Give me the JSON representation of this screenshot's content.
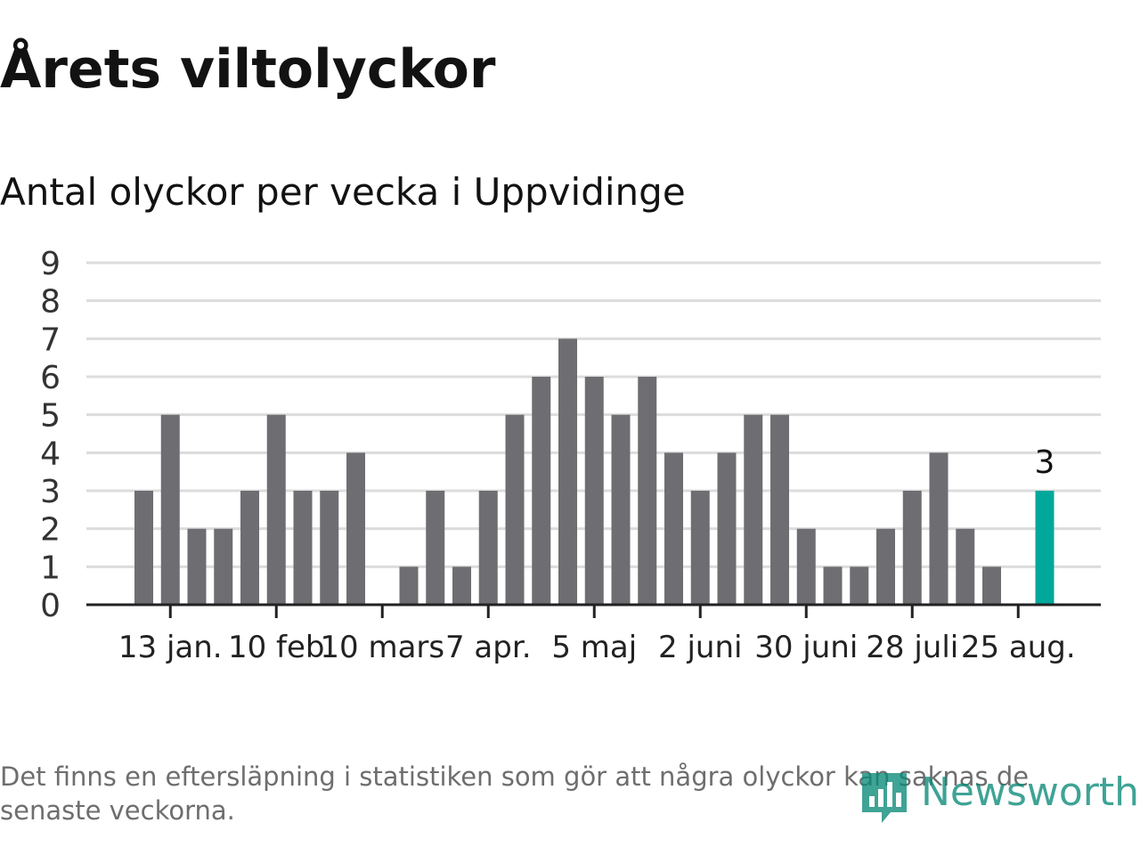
{
  "title": "Årets viltolyckor",
  "subtitle": "Antal olyckor per vecka i Uppvidinge",
  "footnote": "Det finns en eftersläpning i statistiken som gör att några olyckor kan saknas de senaste veckorna.",
  "logo": {
    "text": "Newsworthy",
    "icon": "newsworthy-bar-chart-logo-icon"
  },
  "colors": {
    "bar": "#6e6e72",
    "highlight": "#00a89b",
    "grid": "#dcdcdc",
    "axis": "#222222",
    "text": "#121212",
    "logo": "#0a8a78"
  },
  "chart_data": {
    "type": "bar",
    "title": "Årets viltolyckor",
    "subtitle": "Antal olyckor per vecka i Uppvidinge",
    "xlabel": "",
    "ylabel": "",
    "ylim": [
      0,
      9
    ],
    "yticks": [
      0,
      1,
      2,
      3,
      4,
      5,
      6,
      7,
      8,
      9
    ],
    "grid": true,
    "legend": "none",
    "x_tick_labels": [
      {
        "week": 2,
        "label": "13 jan."
      },
      {
        "week": 6,
        "label": "10 feb"
      },
      {
        "week": 10,
        "label": "10 mars"
      },
      {
        "week": 14,
        "label": "7 apr."
      },
      {
        "week": 18,
        "label": "5 maj"
      },
      {
        "week": 22,
        "label": "2 juni"
      },
      {
        "week": 26,
        "label": "30 juni"
      },
      {
        "week": 30,
        "label": "28 juli"
      },
      {
        "week": 34,
        "label": "25 aug."
      }
    ],
    "weeks": [
      1,
      2,
      3,
      4,
      5,
      6,
      7,
      8,
      9,
      10,
      11,
      12,
      13,
      14,
      15,
      16,
      17,
      18,
      19,
      20,
      21,
      22,
      23,
      24,
      25,
      26,
      27,
      28,
      29,
      30,
      31,
      32,
      33,
      34,
      35
    ],
    "values": [
      3,
      5,
      2,
      2,
      3,
      5,
      3,
      3,
      4,
      0,
      1,
      3,
      1,
      3,
      5,
      6,
      7,
      6,
      5,
      6,
      4,
      3,
      4,
      5,
      5,
      2,
      1,
      1,
      2,
      3,
      4,
      2,
      1,
      0,
      3
    ],
    "highlight": {
      "week": 35,
      "value": 3,
      "label": "3"
    }
  }
}
